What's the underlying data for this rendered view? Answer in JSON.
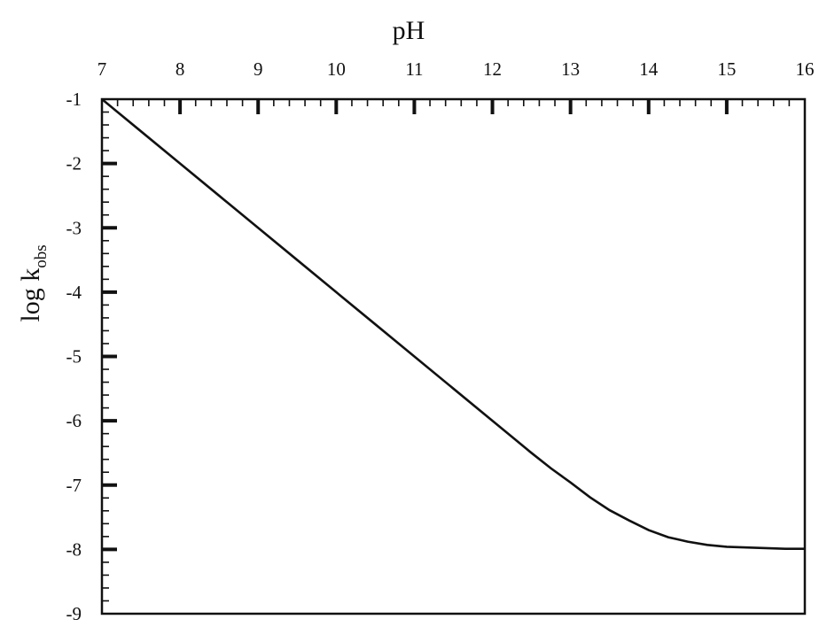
{
  "chart_data": {
    "type": "line",
    "title": "",
    "xlabel": "pH",
    "ylabel_main": "log k",
    "ylabel_sub": "obs",
    "xlim": [
      7,
      16
    ],
    "ylim": [
      -9,
      -1
    ],
    "x_axis_position": "top",
    "x_ticks": [
      "7",
      "8",
      "9",
      "10",
      "11",
      "12",
      "13",
      "14",
      "15",
      "16"
    ],
    "y_ticks": [
      "-1",
      "-2",
      "-3",
      "-4",
      "-5",
      "-6",
      "-7",
      "-8",
      "-9"
    ],
    "grid": false,
    "series": [
      {
        "color": "#111111",
        "x": [
          7,
          7.5,
          8,
          8.5,
          9,
          9.5,
          10,
          10.5,
          11,
          11.5,
          12,
          12.25,
          12.5,
          12.75,
          13,
          13.25,
          13.5,
          13.75,
          14,
          14.25,
          14.5,
          14.75,
          15,
          15.25,
          15.5,
          15.75,
          16
        ],
        "y": [
          -1,
          -1.5,
          -2,
          -2.5,
          -3,
          -3.5,
          -4,
          -4.5,
          -5,
          -5.5,
          -6,
          -6.25,
          -6.5,
          -6.74,
          -6.96,
          -7.19,
          -7.39,
          -7.55,
          -7.7,
          -7.81,
          -7.88,
          -7.93,
          -7.96,
          -7.97,
          -7.98,
          -7.99,
          -7.99
        ]
      }
    ]
  }
}
